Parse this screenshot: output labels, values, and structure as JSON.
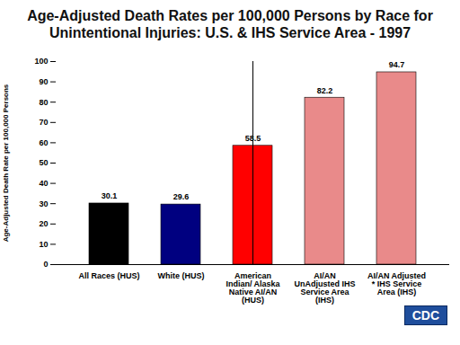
{
  "chart_data": {
    "type": "bar",
    "title": "Age-Adjusted Death Rates per 100,000 Persons by Race for Unintentional Injuries: U.S. & IHS Service Area - 1997",
    "y_label": "Age-Adjusted Death Rate per 100,000 Persons",
    "categories": [
      "All Races (HUS)",
      "White (HUS)",
      "American Indian/ Alaska Native AI/AN (HUS)",
      "AI/AN UnAdjusted IHS Service Area (IHS)",
      "AI/AN Adjusted * IHS Service Area (IHS)"
    ],
    "values": [
      30.1,
      29.6,
      58.5,
      82.2,
      94.7
    ],
    "colors": [
      "#000000",
      "#000080",
      "#ff0000",
      "#e98a8a",
      "#e98a8a"
    ],
    "ylim": [
      0,
      100
    ],
    "yticks": [
      0,
      10,
      20,
      30,
      40,
      50,
      60,
      70,
      80,
      90,
      100
    ],
    "grid": false,
    "data_labels": true,
    "annotations": [
      "CDC"
    ]
  }
}
